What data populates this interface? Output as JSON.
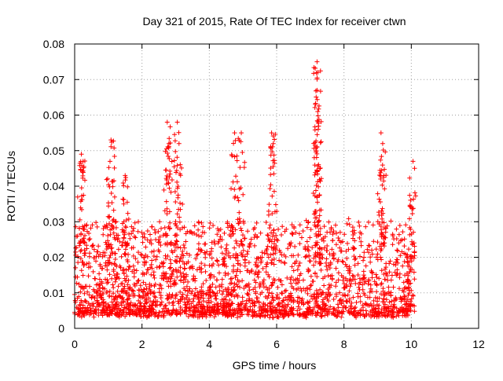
{
  "chart_data": {
    "type": "scatter",
    "title": "Day 321 of 2015, Rate Of TEC Index for receiver ctwn",
    "xlabel": "GPS time / hours",
    "ylabel": "ROTI / TECUs",
    "xlim": [
      0,
      12
    ],
    "ylim": [
      0,
      0.08
    ],
    "x_ticks": [
      0,
      2,
      4,
      6,
      8,
      10,
      12
    ],
    "x_tick_labels": [
      "0",
      "2",
      "4",
      "6",
      "8",
      "10",
      "12"
    ],
    "y_ticks": [
      0,
      0.01,
      0.02,
      0.03,
      0.04,
      0.05,
      0.06,
      0.07,
      0.08
    ],
    "y_tick_labels": [
      "0",
      "0.01",
      "0.02",
      "0.03",
      "0.04",
      "0.05",
      "0.06",
      "0.07",
      "0.08"
    ],
    "grid": true,
    "marker": "+",
    "marker_color": "#ff0000",
    "series": [
      {
        "name": "ROTI",
        "data_range_x": [
          0,
          10.1
        ],
        "typical_y_range": [
          0.004,
          0.03
        ],
        "burst_peaks": [
          {
            "x": 0.2,
            "y": 0.049
          },
          {
            "x": 0.25,
            "y": 0.047
          },
          {
            "x": 1.08,
            "y": 0.053
          },
          {
            "x": 1.05,
            "y": 0.047
          },
          {
            "x": 1.5,
            "y": 0.043
          },
          {
            "x": 2.75,
            "y": 0.058
          },
          {
            "x": 2.8,
            "y": 0.052
          },
          {
            "x": 3.05,
            "y": 0.058
          },
          {
            "x": 3.1,
            "y": 0.052
          },
          {
            "x": 4.75,
            "y": 0.055
          },
          {
            "x": 4.95,
            "y": 0.055
          },
          {
            "x": 5.85,
            "y": 0.055
          },
          {
            "x": 5.9,
            "y": 0.052
          },
          {
            "x": 7.2,
            "y": 0.075
          },
          {
            "x": 7.22,
            "y": 0.072
          },
          {
            "x": 7.2,
            "y": 0.067
          },
          {
            "x": 7.22,
            "y": 0.061
          },
          {
            "x": 7.2,
            "y": 0.051
          },
          {
            "x": 9.1,
            "y": 0.055
          },
          {
            "x": 9.15,
            "y": 0.052
          },
          {
            "x": 10.05,
            "y": 0.047
          }
        ]
      }
    ]
  }
}
